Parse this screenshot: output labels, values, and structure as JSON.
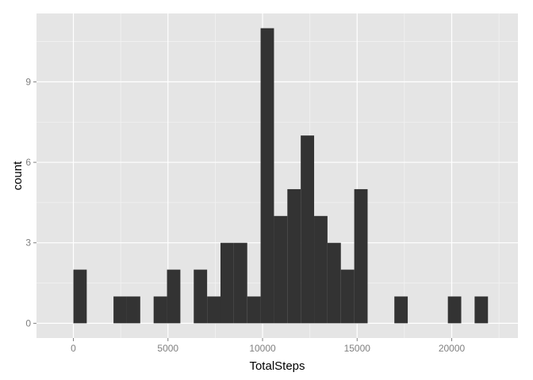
{
  "chart_data": {
    "type": "bar",
    "subtype": "histogram",
    "title": "",
    "xlabel": "TotalSteps",
    "ylabel": "count",
    "xlim": [
      -1950,
      23500
    ],
    "ylim": [
      -0.55,
      11.55
    ],
    "x_ticks": [
      0,
      5000,
      10000,
      15000,
      20000
    ],
    "x_tick_labels": [
      "0",
      "5000",
      "10000",
      "15000",
      "20000"
    ],
    "y_ticks": [
      0,
      3,
      6,
      9
    ],
    "y_tick_labels": [
      "0",
      "3",
      "6",
      "9"
    ],
    "grid": true,
    "bin_width": 707,
    "bins": [
      {
        "x0": 0,
        "x1": 707,
        "count": 2
      },
      {
        "x0": 707,
        "x1": 1414,
        "count": 0
      },
      {
        "x0": 1414,
        "x1": 2121,
        "count": 0
      },
      {
        "x0": 2121,
        "x1": 2828,
        "count": 1
      },
      {
        "x0": 2828,
        "x1": 3535,
        "count": 1
      },
      {
        "x0": 3535,
        "x1": 4242,
        "count": 0
      },
      {
        "x0": 4242,
        "x1": 4949,
        "count": 1
      },
      {
        "x0": 4949,
        "x1": 5656,
        "count": 2
      },
      {
        "x0": 5656,
        "x1": 6363,
        "count": 0
      },
      {
        "x0": 6363,
        "x1": 7070,
        "count": 2
      },
      {
        "x0": 7070,
        "x1": 7777,
        "count": 1
      },
      {
        "x0": 7777,
        "x1": 8484,
        "count": 3
      },
      {
        "x0": 8484,
        "x1": 9191,
        "count": 3
      },
      {
        "x0": 9191,
        "x1": 9898,
        "count": 1
      },
      {
        "x0": 9898,
        "x1": 10605,
        "count": 11
      },
      {
        "x0": 10605,
        "x1": 11312,
        "count": 4
      },
      {
        "x0": 11312,
        "x1": 12019,
        "count": 5
      },
      {
        "x0": 12019,
        "x1": 12726,
        "count": 7
      },
      {
        "x0": 12726,
        "x1": 13433,
        "count": 4
      },
      {
        "x0": 13433,
        "x1": 14140,
        "count": 3
      },
      {
        "x0": 14140,
        "x1": 14847,
        "count": 2
      },
      {
        "x0": 14847,
        "x1": 15554,
        "count": 5
      },
      {
        "x0": 15554,
        "x1": 16261,
        "count": 0
      },
      {
        "x0": 16261,
        "x1": 16968,
        "count": 0
      },
      {
        "x0": 16968,
        "x1": 17675,
        "count": 1
      },
      {
        "x0": 17675,
        "x1": 18382,
        "count": 0
      },
      {
        "x0": 18382,
        "x1": 19089,
        "count": 0
      },
      {
        "x0": 19089,
        "x1": 19796,
        "count": 0
      },
      {
        "x0": 19796,
        "x1": 20503,
        "count": 1
      },
      {
        "x0": 20503,
        "x1": 21210,
        "count": 0
      },
      {
        "x0": 21210,
        "x1": 21917,
        "count": 1
      }
    ],
    "colors": {
      "panel_background": "#e5e5e5",
      "grid_major": "#ffffff",
      "grid_minor": "#f2f2f2",
      "bar_fill": "#333333",
      "tick_label": "#7f7f7f",
      "tick_mark": "#7f7f7f",
      "axis_title": "#000000"
    }
  }
}
